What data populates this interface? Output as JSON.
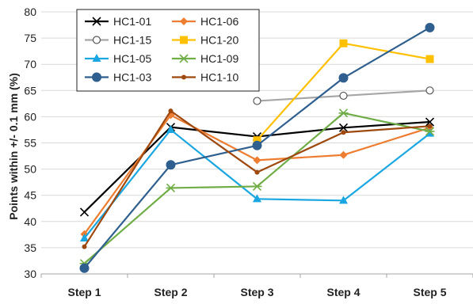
{
  "chart_data": {
    "type": "line",
    "title": "",
    "xlabel": "",
    "ylabel": "Points within +/- 0.1 mm (%)",
    "categories": [
      "Step 1",
      "Step 2",
      "Step 3",
      "Step 4",
      "Step 5"
    ],
    "ylim": [
      30,
      80
    ],
    "yticks": [
      30,
      35,
      40,
      45,
      50,
      55,
      60,
      65,
      70,
      75,
      80
    ],
    "grid": true,
    "legend_position": "top-left",
    "series": [
      {
        "name": "HC1-01",
        "values": [
          41.8,
          58.0,
          56.2,
          57.9,
          59.0
        ],
        "color": "#000000",
        "marker": "x"
      },
      {
        "name": "HC1-06",
        "values": [
          37.6,
          60.3,
          51.7,
          52.7,
          57.9
        ],
        "color": "#ED7D31",
        "marker": "diamond"
      },
      {
        "name": "HC1-15",
        "values": [
          null,
          null,
          63.0,
          64.0,
          65.0
        ],
        "color": "#A6A6A6",
        "marker": "circle-open"
      },
      {
        "name": "HC1-20",
        "values": [
          null,
          null,
          55.5,
          74.0,
          71.0
        ],
        "color": "#FFC000",
        "marker": "square"
      },
      {
        "name": "HC1-05",
        "values": [
          36.8,
          57.5,
          44.3,
          44.0,
          56.8
        ],
        "color": "#1AA7E1",
        "marker": "triangle"
      },
      {
        "name": "HC1-09",
        "values": [
          32.0,
          46.4,
          46.7,
          60.7,
          57.2
        ],
        "color": "#70AD47",
        "marker": "asterisk"
      },
      {
        "name": "HC1-03",
        "values": [
          31.1,
          50.8,
          54.5,
          67.4,
          77.0
        ],
        "color": "#2E5F8E",
        "marker": "circle"
      },
      {
        "name": "HC1-10",
        "values": [
          35.2,
          61.1,
          49.4,
          57.0,
          58.2
        ],
        "color": "#9E480E",
        "marker": "dot"
      }
    ]
  }
}
